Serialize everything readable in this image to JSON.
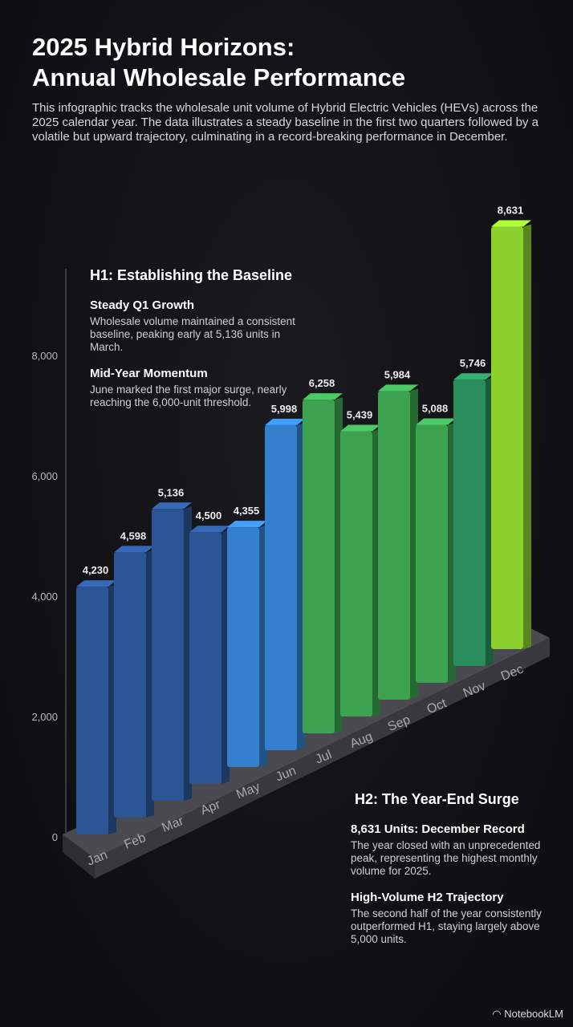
{
  "header": {
    "title_line1": "2025 Hybrid Horizons:",
    "title_line2": "Annual Wholesale Performance",
    "description": "This infographic tracks the wholesale unit volume of Hybrid Electric Vehicles (HEVs) across the 2025 calendar year. The data illustrates a steady baseline in the first two quarters followed by a volatile but upward trajectory, culminating in a record-breaking performance in December."
  },
  "h1_panel": {
    "heading": "H1: Establishing the Baseline",
    "items": [
      {
        "title": "Steady Q1 Growth",
        "text": "Wholesale volume maintained a consistent baseline, peaking early at 5,136 units in March."
      },
      {
        "title": "Mid-Year Momentum",
        "text": "June marked the first major surge, nearly reaching the 6,000-unit threshold."
      }
    ]
  },
  "h2_panel": {
    "heading": "H2: The Year-End Surge",
    "items": [
      {
        "title": "8,631 Units: December Record",
        "text": "The year closed with an unprecedented peak, representing the highest monthly volume for 2025."
      },
      {
        "title": "High-Volume H2 Trajectory",
        "text": "The second half of the year consistently outperformed H1, staying largely above 5,000 units."
      }
    ]
  },
  "brand": "NotebookLM",
  "chart_data": {
    "type": "bar",
    "categories": [
      "Jan",
      "Feb",
      "Mar",
      "Apr",
      "May",
      "Jun",
      "Jul",
      "Aug",
      "Sep",
      "Oct",
      "Nov",
      "Dec"
    ],
    "values": [
      4230,
      4598,
      5136,
      4500,
      4355,
      5998,
      6258,
      5439,
      5984,
      5088,
      5746,
      8631
    ],
    "data_labels": [
      "4,230",
      "4,598",
      "5,136",
      "4,500",
      "4,355",
      "5,998",
      "6,258",
      "5,439",
      "5,984",
      "5,088",
      "5,746",
      "8,631"
    ],
    "yticks": [
      0,
      2000,
      4000,
      6000,
      8000
    ],
    "ytick_labels": [
      "0",
      "2,000",
      "4,000",
      "6,000",
      "8,000"
    ],
    "ylim": [
      0,
      9000
    ],
    "colors": [
      "#2b5594",
      "#2b5594",
      "#2b5594",
      "#2b5594",
      "#3480cf",
      "#3480cf",
      "#3ca24f",
      "#3ca24f",
      "#3ca24f",
      "#3ca24f",
      "#2a8e5c",
      "#8bd02c"
    ],
    "style": "3d-isometric"
  }
}
